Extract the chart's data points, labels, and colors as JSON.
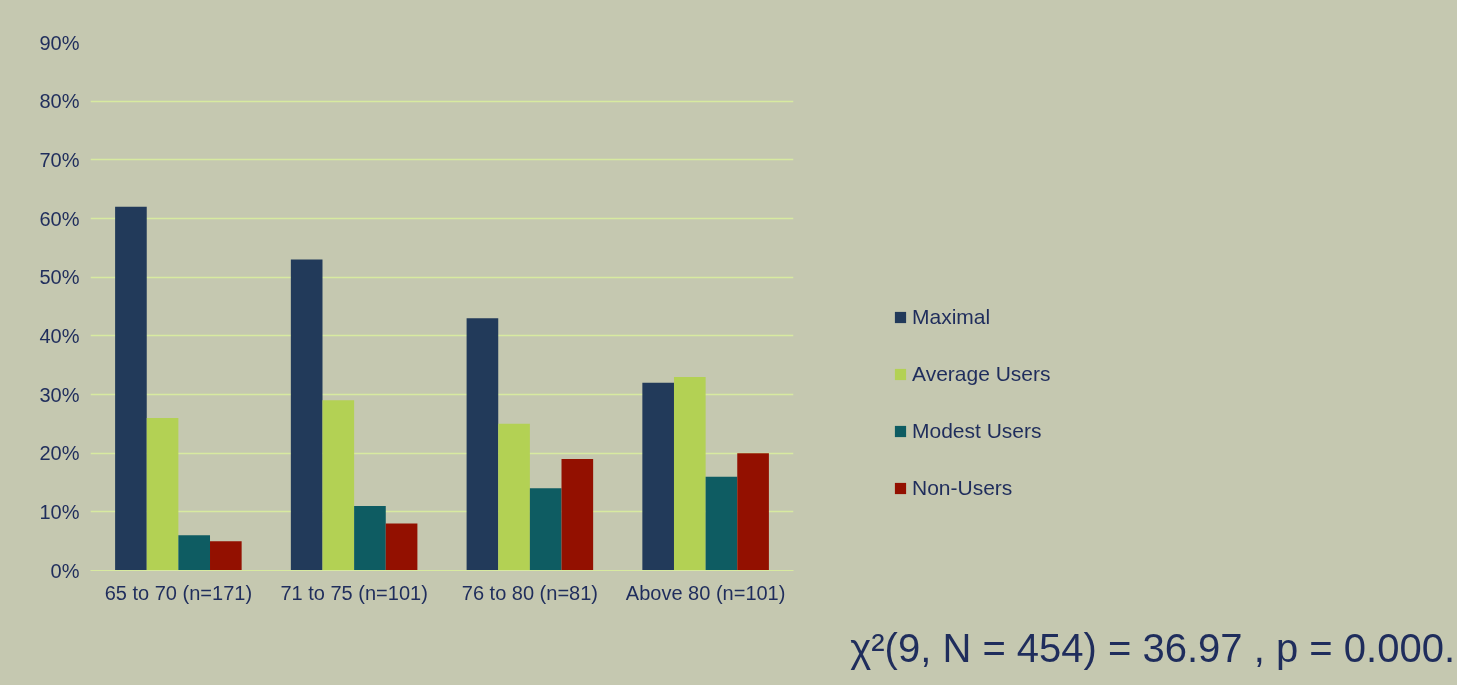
{
  "chart_data": {
    "type": "bar",
    "categories": [
      "65 to 70 (n=171)",
      "71 to 75 (n=101)",
      "76 to 80 (n=81)",
      "Above 80 (n=101)"
    ],
    "series": [
      {
        "name": "Maximal",
        "color": "#223a5a",
        "values": [
          62,
          53,
          43,
          32
        ]
      },
      {
        "name": "Average Users",
        "color": "#b3d154",
        "values": [
          26,
          29,
          25,
          33
        ]
      },
      {
        "name": "Modest Users",
        "color": "#0e5c62",
        "values": [
          6,
          11,
          14,
          16
        ]
      },
      {
        "name": "Non-Users",
        "color": "#931000",
        "values": [
          5,
          8,
          19,
          20
        ]
      }
    ],
    "ylim": [
      0,
      90
    ],
    "yticks": [
      {
        "value": 0,
        "label": "0%"
      },
      {
        "value": 10,
        "label": "10%"
      },
      {
        "value": 20,
        "label": "20%"
      },
      {
        "value": 30,
        "label": "30%"
      },
      {
        "value": 40,
        "label": "40%"
      },
      {
        "value": 50,
        "label": "50%"
      },
      {
        "value": 60,
        "label": "60%"
      },
      {
        "value": 70,
        "label": "70%"
      },
      {
        "value": 80,
        "label": "80%"
      },
      {
        "value": 90,
        "label": "90%"
      }
    ],
    "grid": "y",
    "legend": "right",
    "annotations": [
      "χ²(9, N = 454) = 36.97 , p = 0.000."
    ]
  }
}
